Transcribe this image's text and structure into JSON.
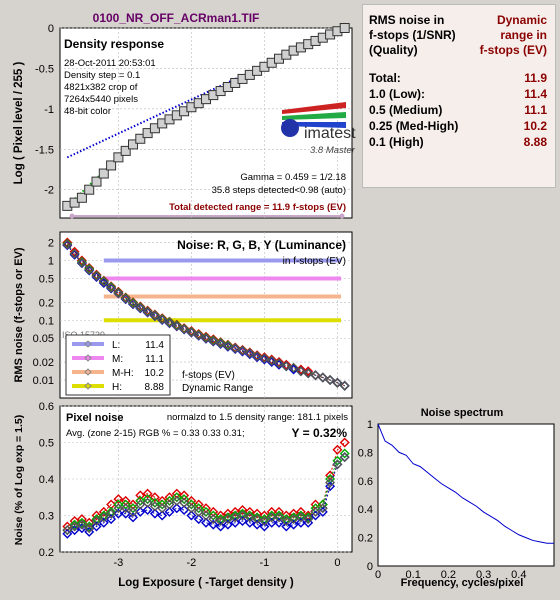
{
  "file_title": "0100_NR_OFF_ACRman1.TIF",
  "density": {
    "title": "Density response",
    "info": [
      "28-Oct-2011 20:53:01",
      "Density step = 0.1",
      "4821x382 crop of",
      "7264x5440 pixels",
      "48-bit color"
    ],
    "logo": "imatest",
    "logo_sub": "3.8  Master",
    "gamma": "Gamma = 0.459 = 1/2.18",
    "steps": "35.8 steps detected<0.98 (auto)",
    "total_range": "Total detected range = 11.9 f-stops (EV)",
    "ylabel": "Log ( Pixel level / 255 )",
    "yticks": [
      "0",
      "-0.5",
      "-1",
      "-1.5",
      "-2"
    ]
  },
  "table": {
    "header_left": [
      "RMS noise in",
      "f-stops (1/SNR)",
      "(Quality)"
    ],
    "header_right": [
      "Dynamic",
      "range in",
      "f-stops (EV)"
    ],
    "rows": [
      {
        "label": "Total:",
        "value": "11.9"
      },
      {
        "label": "1.0  (Low):",
        "value": "11.4"
      },
      {
        "label": "0.5  (Medium)",
        "value": "11.1"
      },
      {
        "label": "0.25 (Med-High)",
        "value": "10.2"
      },
      {
        "label": "0.1  (High)",
        "value": "8.88"
      }
    ]
  },
  "noise": {
    "title": "Noise: R, G, B, Y (Luminance)",
    "subtitle": "in f-stops (EV)",
    "ylabel": "RMS noise (f-stops or EV)",
    "yticks": [
      "2",
      "1",
      "0.5",
      "0.2",
      "0.1",
      "0.05",
      "0.02",
      "0.01"
    ],
    "legend": [
      {
        "label": "L:",
        "value": "11.4",
        "color": "#9999ee"
      },
      {
        "label": "M:",
        "value": "11.1",
        "color": "#ee88ee"
      },
      {
        "label": "M-H:",
        "value": "10.2",
        "color": "#f5b48c"
      },
      {
        "label": "H:",
        "value": "8.88",
        "color": "#dddd00"
      }
    ],
    "note1": "f-stops (EV)",
    "note2": "Dynamic Range",
    "hidden_text": "ISO 15739"
  },
  "pixel": {
    "title": "Pixel noise",
    "norm": "normalzd to 1.5 density range: 181.1 pixels",
    "avg": "Avg. (zone 2-15) RGB % = 0.33  0.33  0.31;",
    "y": "Y = 0.32%",
    "ylabel": "Noise (% of Log exp = 1.5)",
    "xlabel": "Log Exposure ( -Target density )",
    "yticks": [
      "0.6",
      "0.5",
      "0.4",
      "0.3",
      "0.2"
    ],
    "xticks": [
      "-3",
      "-2",
      "-1",
      "0"
    ]
  },
  "spectrum": {
    "title": "Noise spectrum",
    "xlabel": "Frequency, cycles/pixel",
    "yticks": [
      "1",
      "0.8",
      "0.6",
      "0.4",
      "0.2",
      "0"
    ],
    "xticks": [
      "0",
      "0.1",
      "0.2",
      "0.3",
      "0.4"
    ]
  },
  "chart_data": [
    {
      "type": "line",
      "title": "Density response",
      "ylabel": "Log ( Pixel level / 255 )",
      "xlim": [
        -3.8,
        0.2
      ],
      "ylim": [
        -2.35,
        0
      ],
      "series": [
        {
          "marker": "square",
          "x": [
            -3.7,
            -3.6,
            -3.5,
            -3.4,
            -3.3,
            -3.2,
            -3.1,
            -3.0,
            -2.9,
            -2.8,
            -2.7,
            -2.6,
            -2.5,
            -2.4,
            -2.3,
            -2.2,
            -2.1,
            -2.0,
            -1.9,
            -1.8,
            -1.7,
            -1.6,
            -1.5,
            -1.4,
            -1.3,
            -1.2,
            -1.1,
            -1.0,
            -0.9,
            -0.8,
            -0.7,
            -0.6,
            -0.5,
            -0.4,
            -0.3,
            -0.2,
            -0.1,
            0.0,
            0.1
          ],
          "y": [
            -2.2,
            -2.16,
            -2.1,
            -2.0,
            -1.9,
            -1.8,
            -1.7,
            -1.6,
            -1.52,
            -1.44,
            -1.37,
            -1.3,
            -1.24,
            -1.18,
            -1.13,
            -1.08,
            -1.03,
            -0.98,
            -0.93,
            -0.88,
            -0.83,
            -0.78,
            -0.73,
            -0.68,
            -0.63,
            -0.58,
            -0.53,
            -0.48,
            -0.43,
            -0.38,
            -0.33,
            -0.28,
            -0.24,
            -0.2,
            -0.16,
            -0.12,
            -0.08,
            -0.04,
            0.0
          ]
        },
        {
          "x": [
            -3.7,
            0.1
          ],
          "y": [
            -1.6,
            0.0
          ],
          "color": "#0000cc"
        },
        {
          "x": [
            -3.7,
            -2.9
          ],
          "y": [
            -2.2,
            -1.52
          ],
          "color": "#00aa00"
        }
      ]
    },
    {
      "type": "line",
      "title": "Noise: R, G, B, Y (Luminance)",
      "ylabel": "RMS noise (f-stops or EV)",
      "yscale": "log",
      "ylim": [
        0.005,
        3
      ],
      "x": [
        -3.7,
        -3.6,
        -3.5,
        -3.4,
        -3.3,
        -3.2,
        -3.1,
        -3.0,
        -2.9,
        -2.8,
        -2.7,
        -2.6,
        -2.5,
        -2.4,
        -2.3,
        -2.2,
        -2.1,
        -2.0,
        -1.9,
        -1.8,
        -1.7,
        -1.6,
        -1.5,
        -1.4,
        -1.3,
        -1.2,
        -1.1,
        -1.0,
        -0.9,
        -0.8,
        -0.7,
        -0.6,
        -0.5,
        -0.4,
        -0.3,
        -0.2,
        -0.1,
        0.0,
        0.1
      ],
      "series": [
        {
          "color": "#dd0000",
          "values": [
            2.0,
            1.4,
            1.0,
            0.75,
            0.58,
            0.46,
            0.37,
            0.3,
            0.24,
            0.2,
            0.17,
            0.145,
            0.125,
            0.108,
            0.095,
            0.084,
            0.074,
            0.066,
            0.059,
            0.053,
            0.048,
            0.043,
            0.039,
            0.035,
            0.032,
            0.029,
            0.026,
            0.024,
            0.022,
            0.02,
            0.018,
            0.016,
            0.015,
            0.014,
            0.012,
            0.011,
            0.01,
            0.009,
            0.008
          ]
        },
        {
          "color": "#00aa00",
          "values": [
            1.9,
            1.3,
            0.95,
            0.72,
            0.56,
            0.45,
            0.36,
            0.29,
            0.235,
            0.195,
            0.165,
            0.14,
            0.122,
            0.105,
            0.093,
            0.082,
            0.072,
            0.064,
            0.057,
            0.051,
            0.046,
            0.042,
            0.038,
            0.034,
            0.031,
            0.028,
            0.025,
            0.023,
            0.021,
            0.019,
            0.017,
            0.016,
            0.014,
            0.013,
            0.012,
            0.011,
            0.01,
            0.009,
            0.008
          ]
        },
        {
          "color": "#0000cc",
          "values": [
            1.8,
            1.25,
            0.9,
            0.68,
            0.53,
            0.42,
            0.34,
            0.28,
            0.225,
            0.185,
            0.158,
            0.135,
            0.117,
            0.101,
            0.089,
            0.079,
            0.07,
            0.062,
            0.055,
            0.049,
            0.044,
            0.04,
            0.036,
            0.033,
            0.03,
            0.027,
            0.024,
            0.022,
            0.02,
            0.018,
            0.017,
            0.015,
            0.014,
            0.013,
            0.012,
            0.011,
            0.01,
            0.009,
            0.008
          ]
        },
        {
          "color": "#555555",
          "values": [
            1.85,
            1.3,
            0.92,
            0.7,
            0.55,
            0.44,
            0.35,
            0.285,
            0.23,
            0.19,
            0.162,
            0.138,
            0.12,
            0.103,
            0.091,
            0.08,
            0.071,
            0.063,
            0.056,
            0.05,
            0.045,
            0.041,
            0.037,
            0.034,
            0.031,
            0.028,
            0.025,
            0.023,
            0.021,
            0.019,
            0.017,
            0.016,
            0.014,
            0.013,
            0.012,
            0.011,
            0.01,
            0.009,
            0.008
          ]
        }
      ],
      "thresholds": [
        {
          "y": 1.0,
          "color": "#9999ee"
        },
        {
          "y": 0.5,
          "color": "#ee88ee"
        },
        {
          "y": 0.25,
          "color": "#f5b48c"
        },
        {
          "y": 0.1,
          "color": "#dddd00"
        }
      ]
    },
    {
      "type": "line",
      "title": "Pixel noise",
      "xlabel": "Log Exposure ( -Target density )",
      "ylabel": "Noise (% of Log exp = 1.5)",
      "xlim": [
        -3.8,
        0.2
      ],
      "ylim": [
        0.2,
        0.6
      ],
      "x": [
        -3.7,
        -3.6,
        -3.5,
        -3.4,
        -3.3,
        -3.2,
        -3.1,
        -3.0,
        -2.9,
        -2.8,
        -2.7,
        -2.6,
        -2.5,
        -2.4,
        -2.3,
        -2.2,
        -2.1,
        -2.0,
        -1.9,
        -1.8,
        -1.7,
        -1.6,
        -1.5,
        -1.4,
        -1.3,
        -1.2,
        -1.1,
        -1.0,
        -0.9,
        -0.8,
        -0.7,
        -0.6,
        -0.5,
        -0.4,
        -0.3,
        -0.2,
        -0.1,
        0.0,
        0.1
      ],
      "series": [
        {
          "color": "#dd0000",
          "values": [
            0.27,
            0.285,
            0.29,
            0.28,
            0.3,
            0.31,
            0.33,
            0.345,
            0.34,
            0.33,
            0.355,
            0.36,
            0.35,
            0.34,
            0.35,
            0.36,
            0.355,
            0.34,
            0.33,
            0.32,
            0.31,
            0.3,
            0.305,
            0.31,
            0.315,
            0.31,
            0.305,
            0.3,
            0.31,
            0.31,
            0.3,
            0.305,
            0.31,
            0.3,
            0.33,
            0.33,
            0.41,
            0.48,
            0.5
          ]
        },
        {
          "color": "#00aa00",
          "values": [
            0.26,
            0.275,
            0.28,
            0.27,
            0.29,
            0.3,
            0.31,
            0.33,
            0.33,
            0.32,
            0.34,
            0.345,
            0.335,
            0.33,
            0.34,
            0.35,
            0.345,
            0.33,
            0.32,
            0.31,
            0.3,
            0.29,
            0.295,
            0.3,
            0.305,
            0.3,
            0.295,
            0.29,
            0.3,
            0.3,
            0.29,
            0.295,
            0.3,
            0.295,
            0.32,
            0.33,
            0.4,
            0.45,
            0.47
          ]
        },
        {
          "color": "#0000cc",
          "values": [
            0.25,
            0.26,
            0.265,
            0.255,
            0.27,
            0.28,
            0.29,
            0.305,
            0.305,
            0.295,
            0.31,
            0.315,
            0.305,
            0.3,
            0.31,
            0.32,
            0.315,
            0.3,
            0.29,
            0.28,
            0.275,
            0.27,
            0.275,
            0.28,
            0.285,
            0.28,
            0.275,
            0.27,
            0.28,
            0.28,
            0.27,
            0.275,
            0.28,
            0.28,
            0.3,
            0.31,
            0.38,
            0.44,
            0.46
          ]
        },
        {
          "color": "#555555",
          "values": [
            0.26,
            0.27,
            0.275,
            0.265,
            0.285,
            0.295,
            0.305,
            0.32,
            0.32,
            0.31,
            0.33,
            0.335,
            0.325,
            0.32,
            0.33,
            0.34,
            0.335,
            0.32,
            0.31,
            0.3,
            0.29,
            0.285,
            0.29,
            0.295,
            0.3,
            0.295,
            0.29,
            0.285,
            0.295,
            0.295,
            0.285,
            0.29,
            0.295,
            0.29,
            0.31,
            0.32,
            0.39,
            0.44,
            0.46
          ]
        }
      ]
    },
    {
      "type": "line",
      "title": "Noise spectrum",
      "xlabel": "Frequency, cycles/pixel",
      "xlim": [
        0,
        0.5
      ],
      "ylim": [
        0,
        1
      ],
      "x": [
        0,
        0.02,
        0.04,
        0.06,
        0.08,
        0.1,
        0.12,
        0.14,
        0.16,
        0.18,
        0.2,
        0.22,
        0.24,
        0.26,
        0.28,
        0.3,
        0.32,
        0.34,
        0.36,
        0.38,
        0.4,
        0.42,
        0.44,
        0.46,
        0.48,
        0.5
      ],
      "values": [
        1.0,
        0.88,
        0.85,
        0.8,
        0.78,
        0.72,
        0.7,
        0.66,
        0.62,
        0.58,
        0.55,
        0.52,
        0.48,
        0.45,
        0.42,
        0.38,
        0.35,
        0.32,
        0.28,
        0.25,
        0.22,
        0.2,
        0.18,
        0.17,
        0.16,
        0.16
      ]
    }
  ]
}
